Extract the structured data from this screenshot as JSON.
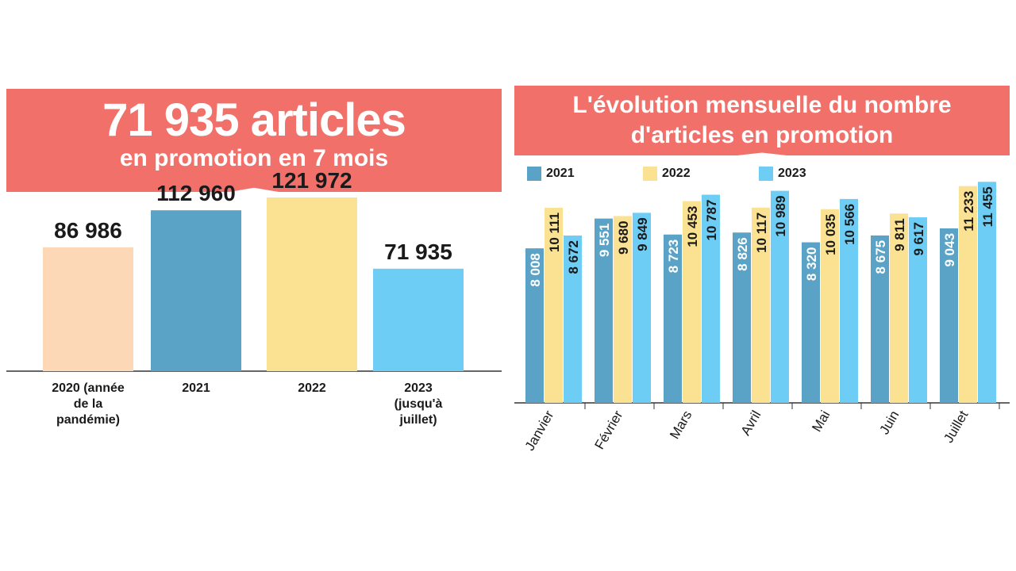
{
  "left": {
    "headline": "71 935 articles",
    "subheadline": "en promotion en 7 mois"
  },
  "right": {
    "title_line1": "L'évolution mensuelle du nombre",
    "title_line2": "d'articles en promotion"
  },
  "colors": {
    "banner": "#f2706a",
    "year2020": "#fcd8b6",
    "year2021": "#5aa3c6",
    "year2022": "#fbe192",
    "year2023": "#6dcdf4"
  },
  "chart_data": [
    {
      "type": "bar",
      "categories": [
        "2020 (année de la pandémie)",
        "2021",
        "2022",
        "2023 (jusqu'à juillet)"
      ],
      "category_lines": [
        [
          "2020 (année",
          "de la",
          "pandémie)"
        ],
        [
          "2021"
        ],
        [
          "2022"
        ],
        [
          "2023",
          "(jusqu'à",
          "juillet)"
        ]
      ],
      "values": [
        86986,
        112960,
        121972,
        71935
      ],
      "value_labels": [
        "86 986",
        "112 960",
        "121 972",
        "71 935"
      ],
      "ylim": [
        0,
        135000
      ]
    },
    {
      "type": "bar",
      "categories": [
        "Janvier",
        "Février",
        "Mars",
        "Avril",
        "Mai",
        "Juin",
        "Juillet"
      ],
      "series": [
        {
          "name": "2021",
          "values": [
            8008,
            9551,
            8723,
            8826,
            8320,
            8675,
            9043
          ],
          "labels": [
            "8 008",
            "9 551",
            "8 723",
            "8 826",
            "8 320",
            "8 675",
            "9 043"
          ]
        },
        {
          "name": "2022",
          "values": [
            10111,
            9680,
            10453,
            10117,
            10035,
            9811,
            11233
          ],
          "labels": [
            "10 111",
            "9 680",
            "10 453",
            "10 117",
            "10 035",
            "9 811",
            "11 233"
          ]
        },
        {
          "name": "2023",
          "values": [
            8672,
            9849,
            10787,
            10989,
            10566,
            9617,
            11455
          ],
          "labels": [
            "8 672",
            "9 849",
            "10 787",
            "10 989",
            "10 566",
            "9 617",
            "11 455"
          ]
        }
      ],
      "ylim": [
        0,
        12000
      ],
      "legend": "top-left"
    }
  ]
}
